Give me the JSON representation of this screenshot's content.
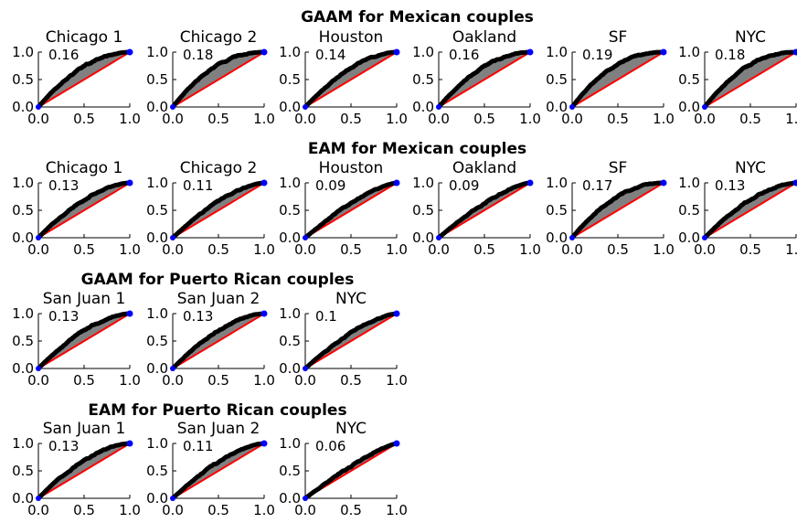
{
  "chart_data": {
    "type": "area",
    "axis": {
      "xlim": [
        0,
        1
      ],
      "ylim": [
        0,
        1
      ],
      "xticks": [
        "0.0",
        "0.5",
        "1.0"
      ],
      "yticks": [
        "0.0",
        "0.5",
        "1.0"
      ]
    },
    "colors": {
      "diagonal": "#ff0000",
      "fill": "#808080",
      "curve": "#000000",
      "endpoint": "#0000ff"
    },
    "groups": [
      {
        "title": "GAAM for Mexican couples",
        "panels": [
          {
            "name": "Chicago 1",
            "label": "0.16",
            "gini": 0.16
          },
          {
            "name": "Chicago 2",
            "label": "0.18",
            "gini": 0.18
          },
          {
            "name": "Houston",
            "label": "0.14",
            "gini": 0.14
          },
          {
            "name": "Oakland",
            "label": "0.16",
            "gini": 0.16
          },
          {
            "name": "SF",
            "label": "0.19",
            "gini": 0.19
          },
          {
            "name": "NYC",
            "label": "0.18",
            "gini": 0.18
          }
        ]
      },
      {
        "title": "EAM for Mexican couples",
        "panels": [
          {
            "name": "Chicago 1",
            "label": "0.13",
            "gini": 0.13
          },
          {
            "name": "Chicago 2",
            "label": "0.11",
            "gini": 0.11
          },
          {
            "name": "Houston",
            "label": "0.09",
            "gini": 0.09
          },
          {
            "name": "Oakland",
            "label": "0.09",
            "gini": 0.09
          },
          {
            "name": "SF",
            "label": "0.17",
            "gini": 0.17
          },
          {
            "name": "NYC",
            "label": "0.13",
            "gini": 0.13
          }
        ]
      },
      {
        "title": "GAAM for Puerto Rican couples",
        "panels": [
          {
            "name": "San Juan 1",
            "label": "0.13",
            "gini": 0.13
          },
          {
            "name": "San Juan 2",
            "label": "0.13",
            "gini": 0.13
          },
          {
            "name": "NYC",
            "label": "0.1",
            "gini": 0.1
          }
        ]
      },
      {
        "title": "EAM for Puerto Rican couples",
        "panels": [
          {
            "name": "San Juan 1",
            "label": "0.13",
            "gini": 0.13
          },
          {
            "name": "San Juan 2",
            "label": "0.11",
            "gini": 0.11
          },
          {
            "name": "NYC",
            "label": "0.06",
            "gini": 0.06
          }
        ]
      }
    ]
  }
}
